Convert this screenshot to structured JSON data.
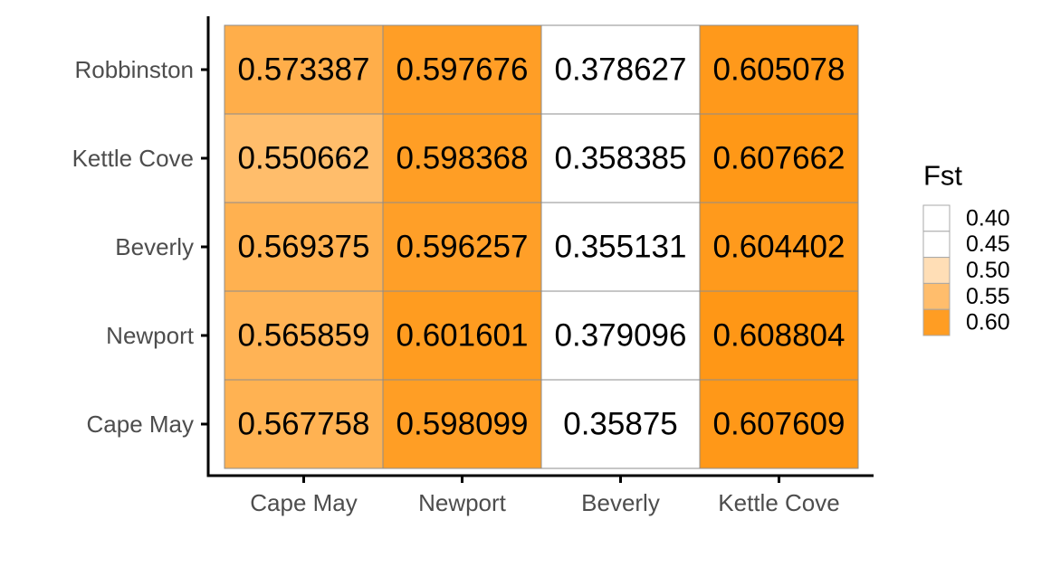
{
  "chart_data": {
    "type": "heatmap",
    "title": "",
    "xlabel": "",
    "ylabel": "",
    "x_categories": [
      "Cape May",
      "Newport",
      "Beverly",
      "Kettle Cove"
    ],
    "y_categories": [
      "Cape May",
      "Newport",
      "Beverly",
      "Kettle Cove",
      "Robbinston"
    ],
    "cells": [
      {
        "x": "Cape May",
        "y": "Robbinston",
        "value": 0.573387,
        "label": "0.573387"
      },
      {
        "x": "Newport",
        "y": "Robbinston",
        "value": 0.597676,
        "label": "0.597676"
      },
      {
        "x": "Beverly",
        "y": "Robbinston",
        "value": 0.378627,
        "label": "0.378627"
      },
      {
        "x": "Kettle Cove",
        "y": "Robbinston",
        "value": 0.605078,
        "label": "0.605078"
      },
      {
        "x": "Cape May",
        "y": "Kettle Cove",
        "value": 0.550662,
        "label": "0.550662"
      },
      {
        "x": "Newport",
        "y": "Kettle Cove",
        "value": 0.598368,
        "label": "0.598368"
      },
      {
        "x": "Beverly",
        "y": "Kettle Cove",
        "value": 0.358385,
        "label": "0.358385"
      },
      {
        "x": "Kettle Cove",
        "y": "Kettle Cove",
        "value": 0.607662,
        "label": "0.607662"
      },
      {
        "x": "Cape May",
        "y": "Beverly",
        "value": 0.569375,
        "label": "0.569375"
      },
      {
        "x": "Newport",
        "y": "Beverly",
        "value": 0.596257,
        "label": "0.596257"
      },
      {
        "x": "Beverly",
        "y": "Beverly",
        "value": 0.355131,
        "label": "0.355131"
      },
      {
        "x": "Kettle Cove",
        "y": "Beverly",
        "value": 0.604402,
        "label": "0.604402"
      },
      {
        "x": "Cape May",
        "y": "Newport",
        "value": 0.565859,
        "label": "0.565859"
      },
      {
        "x": "Newport",
        "y": "Newport",
        "value": 0.601601,
        "label": "0.601601"
      },
      {
        "x": "Beverly",
        "y": "Newport",
        "value": 0.379096,
        "label": "0.379096"
      },
      {
        "x": "Kettle Cove",
        "y": "Newport",
        "value": 0.608804,
        "label": "0.608804"
      },
      {
        "x": "Cape May",
        "y": "Cape May",
        "value": 0.567758,
        "label": "0.567758"
      },
      {
        "x": "Newport",
        "y": "Cape May",
        "value": 0.598099,
        "label": "0.598099"
      },
      {
        "x": "Beverly",
        "y": "Cape May",
        "value": 0.35875,
        "label": "0.35875"
      },
      {
        "x": "Kettle Cove",
        "y": "Cape May",
        "value": 0.607609,
        "label": "0.607609"
      }
    ],
    "legend": {
      "title": "Fst",
      "placement": "right",
      "labels": [
        "0.40",
        "0.45",
        "0.50",
        "0.55",
        "0.60"
      ],
      "values": [
        0.4,
        0.45,
        0.5,
        0.55,
        0.6
      ]
    },
    "color_scale": {
      "low": "#ffffff",
      "high": "#ff9614",
      "midpoint_value": 0.45,
      "domain_max": 0.61
    },
    "colors": {
      "cell_border": "#8c8c8c",
      "axis_line": "#000000",
      "tick_text": "#4d4d4d"
    },
    "grid": false
  }
}
